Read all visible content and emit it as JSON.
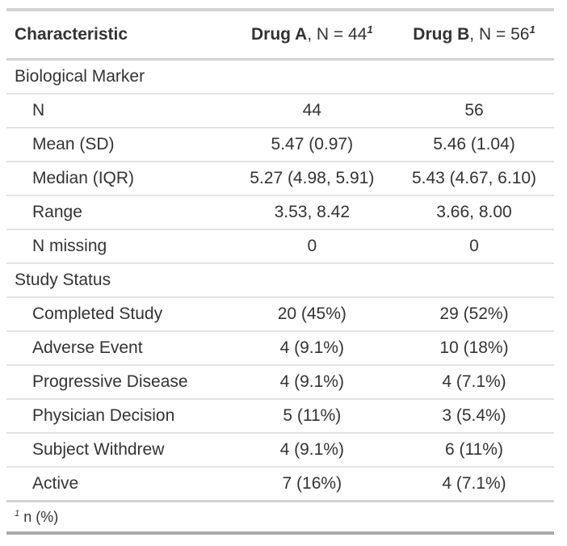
{
  "table": {
    "header": {
      "characteristic": "Characteristic",
      "col_a": {
        "name": "Drug A",
        "rest": ", N = 44",
        "mark": "1"
      },
      "col_b": {
        "name": "Drug B",
        "rest": ", N = 56",
        "mark": "1"
      }
    },
    "footnote": {
      "mark": "1",
      "text": "n (%)"
    }
  },
  "chart_data": {
    "type": "table",
    "title": "",
    "columns": [
      "Characteristic",
      "Drug A, N = 44",
      "Drug B, N = 56"
    ],
    "rows": [
      {
        "section": true,
        "label": "Biological Marker",
        "drug_a": "",
        "drug_b": ""
      },
      {
        "section": false,
        "label": "N",
        "drug_a": "44",
        "drug_b": "56"
      },
      {
        "section": false,
        "label": "Mean (SD)",
        "drug_a": "5.47 (0.97)",
        "drug_b": "5.46 (1.04)"
      },
      {
        "section": false,
        "label": "Median (IQR)",
        "drug_a": "5.27 (4.98, 5.91)",
        "drug_b": "5.43 (4.67, 6.10)"
      },
      {
        "section": false,
        "label": "Range",
        "drug_a": "3.53, 8.42",
        "drug_b": "3.66, 8.00"
      },
      {
        "section": false,
        "label": "N missing",
        "drug_a": "0",
        "drug_b": "0"
      },
      {
        "section": true,
        "label": "Study Status",
        "drug_a": "",
        "drug_b": ""
      },
      {
        "section": false,
        "label": "Completed Study",
        "drug_a": "20 (45%)",
        "drug_b": "29 (52%)"
      },
      {
        "section": false,
        "label": "Adverse Event",
        "drug_a": "4 (9.1%)",
        "drug_b": "10 (18%)"
      },
      {
        "section": false,
        "label": "Progressive Disease",
        "drug_a": "4 (9.1%)",
        "drug_b": "4 (7.1%)"
      },
      {
        "section": false,
        "label": "Physician Decision",
        "drug_a": "5 (11%)",
        "drug_b": "3 (5.4%)"
      },
      {
        "section": false,
        "label": "Subject Withdrew",
        "drug_a": "4 (9.1%)",
        "drug_b": "6 (11%)"
      },
      {
        "section": false,
        "label": "Active",
        "drug_a": "7 (16%)",
        "drug_b": "4 (7.1%)"
      }
    ]
  },
  "colors": {
    "text": "#333333",
    "border_medium": "#d3d3d3",
    "border_light": "#e3e3e3",
    "border_dark": "#a8a8a8",
    "bg": "#ffffff"
  }
}
